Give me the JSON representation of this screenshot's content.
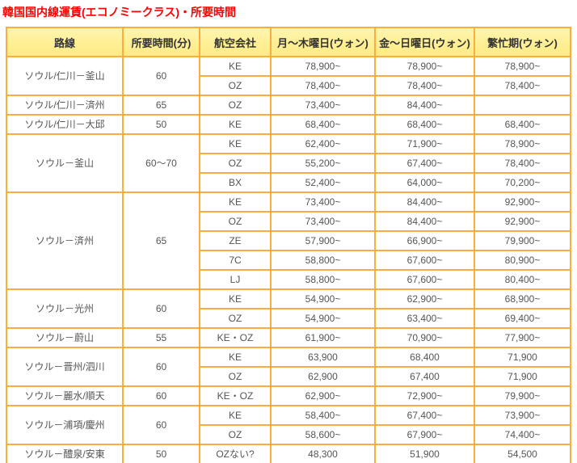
{
  "title": "韓国国内線運賃(エコノミークラス)・所要時間",
  "colors": {
    "title_text": "#FF0000",
    "table_border": "#F9AE3D",
    "header_background": "#FFF098",
    "header_text": "#333333",
    "cell_text": "#555555",
    "cell_background": "#FFFFFF"
  },
  "table": {
    "columns": [
      "路線",
      "所要時間(分)",
      "航空会社",
      "月～木曜日(ウォン)",
      "金～日曜日(ウォン)",
      "繁忙期(ウォン)"
    ],
    "groups": [
      {
        "route": "ソウル/仁川－釜山",
        "duration": "60",
        "rows": [
          {
            "airline": "KE",
            "mon_thu": "78,900~",
            "fri_sun": "78,900~",
            "peak": "78,900~"
          },
          {
            "airline": "OZ",
            "mon_thu": "78,400~",
            "fri_sun": "78,400~",
            "peak": "78,400~"
          }
        ]
      },
      {
        "route": "ソウル/仁川－済州",
        "duration": "65",
        "rows": [
          {
            "airline": "OZ",
            "mon_thu": "73,400~",
            "fri_sun": "84,400~",
            "peak": ""
          }
        ]
      },
      {
        "route": "ソウル/仁川－大邱",
        "duration": "50",
        "rows": [
          {
            "airline": "KE",
            "mon_thu": "68,400~",
            "fri_sun": "68,400~",
            "peak": "68,400~"
          }
        ]
      },
      {
        "route": "ソウル－釜山",
        "duration": "60～70",
        "rows": [
          {
            "airline": "KE",
            "mon_thu": "62,400~",
            "fri_sun": "71,900~",
            "peak": "78,900~"
          },
          {
            "airline": "OZ",
            "mon_thu": "55,200~",
            "fri_sun": "67,400~",
            "peak": "78,400~"
          },
          {
            "airline": "BX",
            "mon_thu": "52,400~",
            "fri_sun": "64,000~",
            "peak": "70,200~"
          }
        ]
      },
      {
        "route": "ソウル－済州",
        "duration": "65",
        "rows": [
          {
            "airline": "KE",
            "mon_thu": "73,400~",
            "fri_sun": "84,400~",
            "peak": "92,900~"
          },
          {
            "airline": "OZ",
            "mon_thu": "73,400~",
            "fri_sun": "84,400~",
            "peak": "92,900~"
          },
          {
            "airline": "ZE",
            "mon_thu": "57,900~",
            "fri_sun": "66,900~",
            "peak": "79,900~"
          },
          {
            "airline": "7C",
            "mon_thu": "58,800~",
            "fri_sun": "67,600~",
            "peak": "80,900~"
          },
          {
            "airline": "LJ",
            "mon_thu": "58,800~",
            "fri_sun": "67,600~",
            "peak": "80,400~"
          }
        ]
      },
      {
        "route": "ソウル－光州",
        "duration": "60",
        "rows": [
          {
            "airline": "KE",
            "mon_thu": "54,900~",
            "fri_sun": "62,900~",
            "peak": "68,900~"
          },
          {
            "airline": "OZ",
            "mon_thu": "54,900~",
            "fri_sun": "63,400~",
            "peak": "69,400~"
          }
        ]
      },
      {
        "route": "ソウル－蔚山",
        "duration": "55",
        "rows": [
          {
            "airline": "KE・OZ",
            "mon_thu": "61,900~",
            "fri_sun": "70,900~",
            "peak": "77,900~"
          }
        ]
      },
      {
        "route": "ソウル－晋州/泗川",
        "duration": "60",
        "rows": [
          {
            "airline": "KE",
            "mon_thu": "63,900",
            "fri_sun": "68,400",
            "peak": "71,900"
          },
          {
            "airline": "OZ",
            "mon_thu": "62,900",
            "fri_sun": "67,400",
            "peak": "71,900"
          }
        ]
      },
      {
        "route": "ソウル－麗水/順天",
        "duration": "60",
        "rows": [
          {
            "airline": "KE・OZ",
            "mon_thu": "62,900~",
            "fri_sun": "72,900~",
            "peak": "79,900~"
          }
        ]
      },
      {
        "route": "ソウル－浦項/慶州",
        "duration": "60",
        "rows": [
          {
            "airline": "KE",
            "mon_thu": "58,400~",
            "fri_sun": "67,400~",
            "peak": "73,900~"
          },
          {
            "airline": "OZ",
            "mon_thu": "58,600~",
            "fri_sun": "67,900~",
            "peak": "74,400~"
          }
        ]
      },
      {
        "route": "ソウル－醴泉/安東",
        "duration": "50",
        "rows": [
          {
            "airline": "OZない?",
            "mon_thu": "48,300",
            "fri_sun": "51,900",
            "peak": "54,500"
          }
        ]
      }
    ]
  }
}
